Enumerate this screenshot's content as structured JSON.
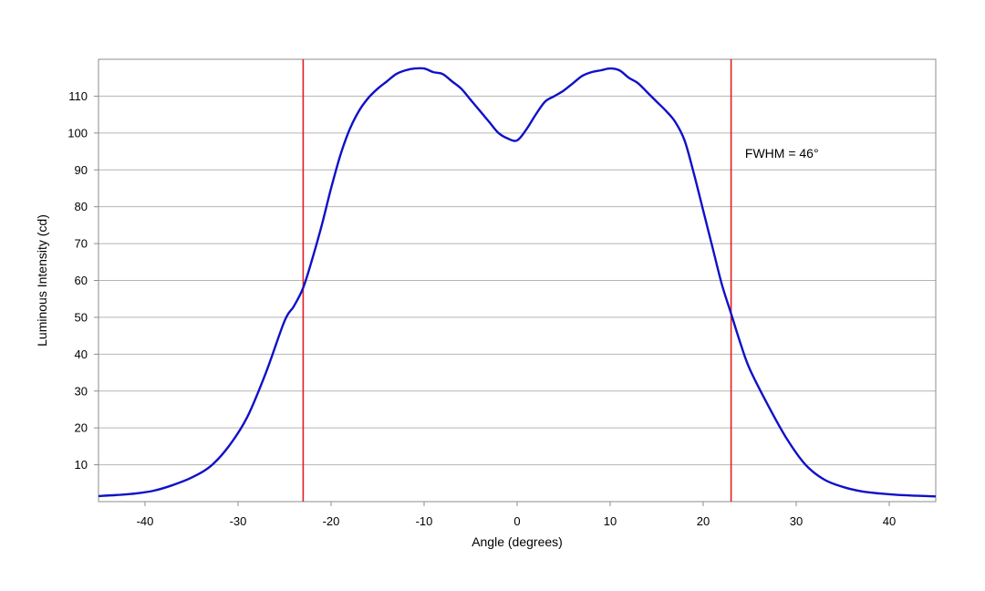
{
  "chart_data": {
    "type": "line",
    "title": "",
    "xlabel": "Angle (degrees)",
    "ylabel": "Luminous Intensity (cd)",
    "xlim": [
      -45,
      45
    ],
    "ylim": [
      0,
      120
    ],
    "x_ticks": [
      -40,
      -30,
      -20,
      -10,
      0,
      10,
      20,
      30,
      40
    ],
    "y_ticks": [
      10,
      20,
      30,
      40,
      50,
      60,
      70,
      80,
      90,
      100,
      110
    ],
    "grid": "horizontal",
    "series": [
      {
        "color": "#1010c8",
        "x": [
          -45,
          -43,
          -41,
          -39,
          -37,
          -35,
          -33,
          -31,
          -29,
          -27,
          -25,
          -24,
          -23,
          -22,
          -21,
          -20,
          -19,
          -18,
          -17,
          -16,
          -15,
          -14,
          -13,
          -12,
          -11,
          -10,
          -9,
          -8,
          -7,
          -6,
          -5,
          -4,
          -3,
          -2,
          -1,
          0,
          1,
          2,
          3,
          4,
          5,
          6,
          7,
          8,
          9,
          10,
          11,
          12,
          13,
          14,
          15,
          16,
          17,
          18,
          19,
          20,
          21,
          22,
          23,
          24,
          25,
          27,
          29,
          31,
          33,
          35,
          37,
          39,
          41,
          43,
          45
        ],
        "y": [
          1.5,
          1.8,
          2.2,
          3.0,
          4.5,
          6.5,
          9.5,
          15,
          23,
          35,
          49,
          53,
          58,
          66,
          75,
          85,
          94,
          101,
          106,
          109.5,
          112,
          114,
          116,
          117,
          117.5,
          117.5,
          116.5,
          116,
          114,
          112,
          109,
          106,
          103,
          100,
          98.5,
          98,
          101,
          105,
          108.5,
          110,
          111.5,
          113.5,
          115.5,
          116.5,
          117,
          117.5,
          117,
          115,
          113.5,
          111,
          108.5,
          106,
          103,
          98,
          89,
          79,
          69,
          59,
          51,
          43,
          36,
          26,
          17,
          10,
          6,
          4,
          2.8,
          2.2,
          1.8,
          1.6,
          1.4
        ]
      }
    ],
    "vlines": [
      {
        "x": -23,
        "color": "#e02020"
      },
      {
        "x": 23,
        "color": "#e02020"
      }
    ],
    "annotation": {
      "text": "FWHM = 46°",
      "x": 24.5,
      "y": 94.5
    }
  }
}
